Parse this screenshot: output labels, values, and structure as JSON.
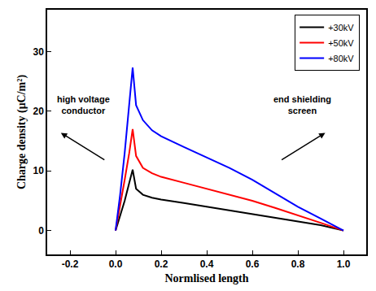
{
  "chart_data": {
    "type": "line",
    "x_label": "Normlised length",
    "y_label": "Charge density (μC/m²)",
    "x": [
      0,
      0.02,
      0.04,
      0.06,
      0.075,
      0.09,
      0.12,
      0.16,
      0.2,
      0.3,
      0.4,
      0.5,
      0.6,
      0.7,
      0.8,
      0.9,
      1.0
    ],
    "series": [
      {
        "name": "+30kV",
        "color": "#000000",
        "values": [
          0,
          2.5,
          5,
          8,
          10.2,
          7,
          6,
          5.5,
          5.2,
          4.6,
          4.0,
          3.4,
          2.8,
          2.2,
          1.6,
          0.9,
          0
        ]
      },
      {
        "name": "+50kV",
        "color": "#ff0000",
        "values": [
          0,
          4,
          8.5,
          13,
          17,
          12.5,
          10.5,
          9.6,
          9.0,
          8.0,
          7.0,
          6.0,
          5.0,
          3.8,
          2.6,
          1.3,
          0
        ]
      },
      {
        "name": "+80kV",
        "color": "#0000ff",
        "values": [
          0,
          6,
          13,
          21,
          27.3,
          21,
          18.5,
          16.8,
          15.8,
          14,
          12.3,
          10.5,
          8.5,
          6.2,
          4.0,
          2.0,
          0
        ]
      }
    ],
    "xlim": [
      -0.3,
      1.1
    ],
    "xticks": [
      -0.2,
      {
        "value": 0,
        "label": "0.0"
      },
      0.2,
      0.4,
      0.6,
      0.8,
      {
        "value": 1,
        "label": "1.0"
      }
    ],
    "ylim": [
      -4,
      37
    ],
    "yticks": [
      0,
      10,
      20,
      30
    ],
    "grid": false,
    "legend": "top right",
    "annotations": [
      {
        "text": "high voltage conductor",
        "x": -0.14,
        "y": 21
      },
      {
        "text": "end shielding screen",
        "x": 0.82,
        "y": 21
      }
    ]
  }
}
